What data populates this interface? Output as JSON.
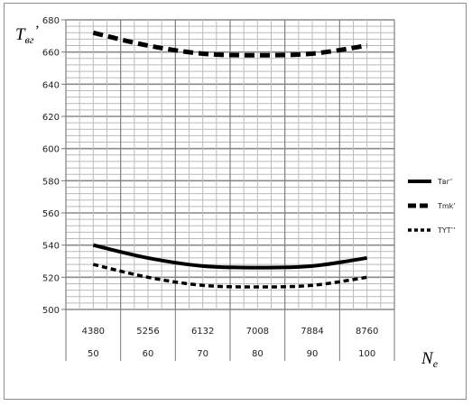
{
  "chart_data": {
    "type": "line",
    "ylabel": {
      "main": "T",
      "sub": "вг",
      "prime": "’"
    },
    "xlabel": {
      "main": "N",
      "sub": "e"
    },
    "ylim": [
      500,
      680
    ],
    "y_ticks": [
      "500",
      "520",
      "540",
      "560",
      "580",
      "600",
      "620",
      "640",
      "660",
      "680"
    ],
    "categories_row1": [
      "4380",
      "5256",
      "6132",
      "7008",
      "7884",
      "8760"
    ],
    "categories_row2": [
      "50",
      "60",
      "70",
      "80",
      "90",
      "100"
    ],
    "grid": true,
    "legend_position": "right",
    "series": [
      {
        "name": "Tвг’",
        "style": "solid",
        "values": [
          540,
          532,
          527,
          526,
          527,
          532
        ]
      },
      {
        "name": "Tmk’",
        "style": "dashed",
        "values": [
          672,
          664,
          659,
          658,
          659,
          664
        ]
      },
      {
        "name": "TYT’’",
        "style": "dotted",
        "values": [
          528,
          520,
          515,
          514,
          515,
          520
        ]
      }
    ]
  }
}
